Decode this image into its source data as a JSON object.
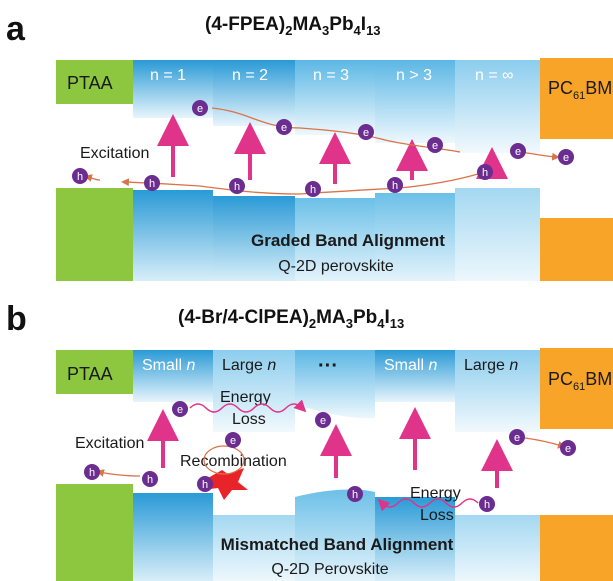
{
  "panel_a": {
    "letter": "a",
    "title_main": "(4-FPEA)",
    "title_sub1": "2",
    "title_mid": "MA",
    "title_sub2": "3",
    "title_mid2": "Pb",
    "title_sub3": "4",
    "title_mid3": "I",
    "title_sub4": "13",
    "left_label": "PTAA",
    "right_label_main": "PC",
    "right_label_sub": "61",
    "right_label_end": "BM",
    "phases": [
      "n = 1",
      "n = 2",
      "n = 3",
      "n > 3",
      "n = ∞"
    ],
    "excitation_label": "Excitation",
    "alignment_label": "Graded Band Alignment",
    "material_label": "Q-2D perovskite",
    "electron_symbol": "e",
    "hole_symbol": "h"
  },
  "panel_b": {
    "letter": "b",
    "title_main": "(4-Br/4-ClPEA)",
    "title_sub1": "2",
    "title_mid": "MA",
    "title_sub2": "3",
    "title_mid2": "Pb",
    "title_sub3": "4",
    "title_mid3": "I",
    "title_sub4": "13",
    "left_label": "PTAA",
    "right_label_main": "PC",
    "right_label_sub": "61",
    "right_label_end": "BM",
    "phase_small": "Small ",
    "phase_large": "Large ",
    "phase_n": "n",
    "phase_dots": "···",
    "excitation_label": "Excitation",
    "energy_loss_1": "Energy",
    "energy_loss_2": "Loss",
    "recombination_label": "Recombination",
    "alignment_label": "Mismatched Band Alignment",
    "material_label": "Q-2D Perovskite",
    "electron_symbol": "e",
    "hole_symbol": "h"
  },
  "colors": {
    "ptaa": "#8dc63f",
    "pcbm": "#f7a428",
    "band_dark": "#2b9bd6",
    "band_light": "#e6f4fb",
    "carrier": "#6b2d8f",
    "arrow": "#e0338a",
    "flow": "#d9734a"
  }
}
